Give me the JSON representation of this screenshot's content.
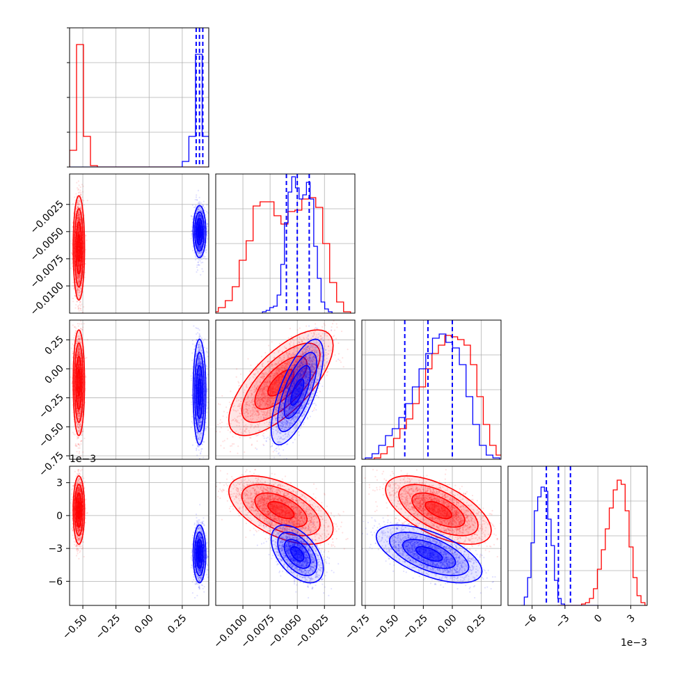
{
  "chart_data": {
    "type": "corner",
    "parameters": [
      {
        "id": "p0",
        "range": [
          -0.6,
          0.45
        ],
        "ticks": [
          -0.5,
          -0.25,
          0.0,
          0.25
        ],
        "tick_labels": [
          "−0.50",
          "−0.25",
          "0.00",
          "0.25"
        ]
      },
      {
        "id": "p1",
        "range": [
          -0.0125,
          0.0003
        ],
        "ticks": [
          -0.01,
          -0.0075,
          -0.005,
          -0.0025
        ],
        "tick_labels": [
          "−0.0100",
          "−0.0075",
          "−0.0050",
          "−0.0025"
        ]
      },
      {
        "id": "p2",
        "range": [
          -0.78,
          0.42
        ],
        "ticks": [
          -0.75,
          -0.5,
          -0.25,
          0.0,
          0.25
        ],
        "tick_labels": [
          "−0.75",
          "−0.50",
          "−0.25",
          "0.00",
          "0.25"
        ]
      },
      {
        "id": "p3",
        "range": [
          -8.2,
          4.5
        ],
        "ticks": [
          -6,
          -3,
          0,
          3
        ],
        "tick_labels": [
          "−6",
          "−3",
          "0",
          "3"
        ],
        "scale_label": "1e−3"
      }
    ],
    "series": [
      {
        "color": "#ff0000",
        "means": [
          -0.53,
          -0.0065,
          -0.12,
          0.5
        ],
        "sds": [
          0.018,
          0.002,
          0.19,
          1.3
        ],
        "corr": [
          [
            1,
            0,
            0,
            0
          ],
          [
            0,
            1,
            0.7,
            -0.55
          ],
          [
            0,
            0.7,
            1,
            -0.6
          ],
          [
            0,
            -0.55,
            -0.6,
            1
          ]
        ],
        "histograms": [
          [
            0.12,
            0.88,
            0.22,
            0.01,
            0,
            0,
            0,
            0,
            0,
            0,
            0,
            0,
            0,
            0,
            0,
            0,
            0,
            0,
            0,
            0
          ],
          [
            0.01,
            0.04,
            0.09,
            0.19,
            0.38,
            0.52,
            0.77,
            0.8,
            0.8,
            0.7,
            0.64,
            0.73,
            0.74,
            0.82,
            0.83,
            0.76,
            0.5,
            0.22,
            0.08,
            0.01
          ],
          [
            0,
            0.01,
            0.04,
            0.09,
            0.15,
            0.22,
            0.29,
            0.4,
            0.52,
            0.65,
            0.76,
            0.82,
            0.89,
            0.88,
            0.86,
            0.82,
            0.68,
            0.45,
            0.25,
            0.1,
            0.03,
            0.01
          ],
          [
            0,
            0,
            0,
            0,
            0,
            0,
            0.01,
            0.02,
            0.05,
            0.12,
            0.26,
            0.4,
            0.55,
            0.7,
            0.83,
            0.9,
            0.87,
            0.68,
            0.42,
            0.2,
            0.07,
            0.02,
            0
          ]
        ]
      },
      {
        "color": "#0000ff",
        "means": [
          0.38,
          -0.005,
          -0.2,
          -3.5
        ],
        "sds": [
          0.02,
          0.001,
          0.19,
          1.1
        ],
        "corr": [
          [
            1,
            0,
            0,
            0
          ],
          [
            0,
            1,
            0.7,
            -0.5
          ],
          [
            0,
            0.7,
            1,
            -0.6
          ],
          [
            0,
            -0.5,
            -0.6,
            1
          ]
        ],
        "quantiles": [
          [
            0.355,
            0.38,
            0.405
          ],
          [
            -0.006,
            -0.005,
            -0.0039
          ],
          [
            -0.41,
            -0.21,
            0.0
          ],
          [
            -4.7,
            -3.6,
            -2.5
          ]
        ],
        "histograms": [
          [
            0,
            0,
            0,
            0,
            0,
            0,
            0,
            0,
            0,
            0,
            0,
            0,
            0,
            0,
            0,
            0,
            0,
            0.04,
            0.22,
            0.81,
            0.22
          ],
          [
            0.01,
            0.02,
            0.04,
            0.05,
            0.13,
            0.35,
            0.65,
            0.87,
            0.98,
            0.9,
            0.82,
            0.85,
            0.94,
            0.82,
            0.48,
            0.25,
            0.08,
            0.03,
            0.01
          ],
          [
            0,
            0.01,
            0.04,
            0.1,
            0.17,
            0.22,
            0.3,
            0.4,
            0.52,
            0.65,
            0.76,
            0.87,
            0.9,
            0.84,
            0.8,
            0.68,
            0.45,
            0.25,
            0.1,
            0.03,
            0.01
          ],
          [
            0,
            0.06,
            0.2,
            0.45,
            0.68,
            0.78,
            0.85,
            0.82,
            0.62,
            0.43,
            0.18,
            0.05,
            0.01,
            0,
            0,
            0,
            0,
            0,
            0,
            0,
            0,
            0,
            0
          ]
        ]
      }
    ]
  }
}
